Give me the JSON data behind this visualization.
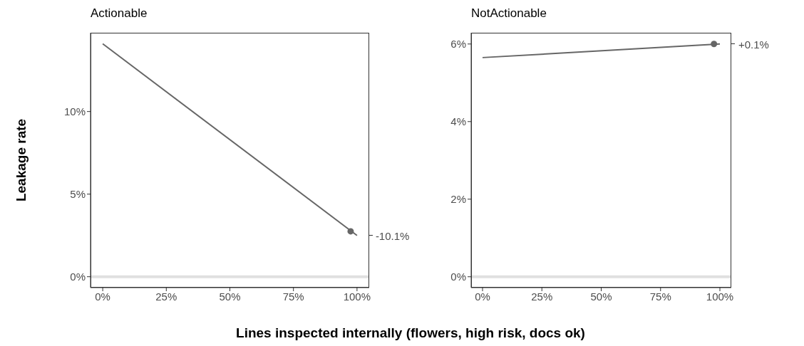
{
  "chart_data": [
    {
      "type": "line",
      "title": "Actionable",
      "xlabel": "Lines inspected internally (flowers, high risk, docs ok)",
      "ylabel": "Leakage rate",
      "series": [
        {
          "x": [
            0,
            100
          ],
          "values": [
            14.1,
            2.5
          ],
          "color": "#666666"
        },
        {
          "type": "scatter",
          "x": [
            97.5
          ],
          "values": [
            2.75
          ],
          "color": "#666666",
          "marker": "circle"
        }
      ],
      "xlim": [
        -4.8,
        104.8
      ],
      "xticks": [
        {
          "value": 0,
          "label": "0%"
        },
        {
          "value": 25,
          "label": "25%"
        },
        {
          "value": 50,
          "label": "50%"
        },
        {
          "value": 75,
          "label": "75%"
        },
        {
          "value": 100,
          "label": "100%"
        }
      ],
      "ylim": [
        -0.66,
        14.77
      ],
      "yticks": [
        {
          "value": 0,
          "label": "0%"
        },
        {
          "value": 5,
          "label": "5%"
        },
        {
          "value": 10,
          "label": "10%"
        }
      ],
      "annotations": [
        {
          "text": "-10.1%",
          "x": 100,
          "y": 2.5
        }
      ],
      "ref_lines": [
        {
          "axis": "y",
          "value": 0,
          "color": "#e0e0e0"
        }
      ],
      "grid": false
    },
    {
      "type": "line",
      "title": "NotActionable",
      "series": [
        {
          "x": [
            0,
            100
          ],
          "values": [
            5.65,
            6.0
          ],
          "color": "#666666"
        },
        {
          "type": "scatter",
          "x": [
            97.5
          ],
          "values": [
            6.0
          ],
          "color": "#666666",
          "marker": "circle"
        }
      ],
      "xlim": [
        -4.8,
        104.8
      ],
      "xticks": [
        {
          "value": 0,
          "label": "0%"
        },
        {
          "value": 25,
          "label": "25%"
        },
        {
          "value": 50,
          "label": "50%"
        },
        {
          "value": 75,
          "label": "75%"
        },
        {
          "value": 100,
          "label": "100%"
        }
      ],
      "ylim": [
        -0.28,
        6.29
      ],
      "yticks": [
        {
          "value": 0,
          "label": "0%"
        },
        {
          "value": 2,
          "label": "2%"
        },
        {
          "value": 4,
          "label": "4%"
        },
        {
          "value": 6,
          "label": "6%"
        }
      ],
      "annotations": [
        {
          "text": "+0.1%",
          "x": 100,
          "y": 6.0
        }
      ],
      "ref_lines": [
        {
          "axis": "y",
          "value": 0,
          "color": "#e0e0e0"
        }
      ],
      "grid": false
    }
  ]
}
